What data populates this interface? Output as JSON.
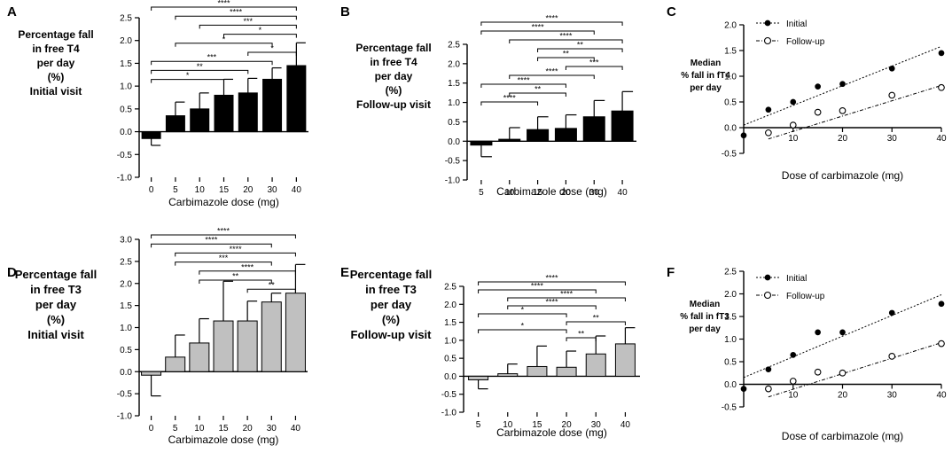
{
  "chart_data": [
    {
      "panel": "A",
      "type": "bar",
      "categories": [
        "0",
        "5",
        "10",
        "15",
        "20",
        "30",
        "40"
      ],
      "values": [
        -0.15,
        0.35,
        0.5,
        0.8,
        0.85,
        1.15,
        1.45
      ],
      "errors": [
        0.15,
        0.3,
        0.35,
        0.35,
        0.32,
        0.25,
        0.5
      ],
      "bar_color": "#000000",
      "ylabel_lines": [
        "Percentage fall",
        "in free T4",
        "per day",
        "(%)",
        "Initial visit"
      ],
      "xlabel": "Carbimazole dose (mg)",
      "ylim": [
        -1.0,
        2.5
      ],
      "yticks": [
        "-1.0",
        "-0.5",
        "0.0",
        "0.5",
        "1.0",
        "1.5",
        "2.0",
        "2.5"
      ],
      "significance": [
        {
          "from": 0,
          "to": 6,
          "label": "****"
        },
        {
          "from": 1,
          "to": 6,
          "label": "****"
        },
        {
          "from": 2,
          "to": 6,
          "label": "***"
        },
        {
          "from": 3,
          "to": 6,
          "label": "*"
        },
        {
          "from": 1,
          "to": 5,
          "label": "*"
        },
        {
          "from": 4,
          "to": 6,
          "label": "*"
        },
        {
          "from": 0,
          "to": 5,
          "label": "***"
        },
        {
          "from": 0,
          "to": 4,
          "label": "**"
        },
        {
          "from": 0,
          "to": 3,
          "label": "*"
        }
      ]
    },
    {
      "panel": "B",
      "type": "bar",
      "categories": [
        "5",
        "10",
        "15",
        "20",
        "30",
        "40"
      ],
      "values": [
        -0.1,
        0.05,
        0.3,
        0.33,
        0.63,
        0.78
      ],
      "errors": [
        0.3,
        0.3,
        0.33,
        0.35,
        0.42,
        0.5
      ],
      "bar_color": "#000000",
      "ylabel_lines": [
        "Percentage fall",
        "in free T4",
        "per day",
        "(%)",
        "Follow-up visit"
      ],
      "xlabel": "Carbimazole dose (mg)",
      "ylim": [
        -1.0,
        2.5
      ],
      "yticks": [
        "-1.0",
        "-0.5",
        "0.0",
        "0.5",
        "1.0",
        "1.5",
        "2.0",
        "2.5"
      ],
      "significance": [
        {
          "from": 0,
          "to": 5,
          "label": "****"
        },
        {
          "from": 0,
          "to": 4,
          "label": "****"
        },
        {
          "from": 1,
          "to": 5,
          "label": "****"
        },
        {
          "from": 2,
          "to": 5,
          "label": "**"
        },
        {
          "from": 2,
          "to": 4,
          "label": "**"
        },
        {
          "from": 3,
          "to": 5,
          "label": "***"
        },
        {
          "from": 1,
          "to": 4,
          "label": "****"
        },
        {
          "from": 0,
          "to": 3,
          "label": "****"
        },
        {
          "from": 1,
          "to": 3,
          "label": "**"
        },
        {
          "from": 0,
          "to": 2,
          "label": "****"
        }
      ]
    },
    {
      "panel": "C",
      "type": "scatter",
      "series": [
        {
          "name": "Initial",
          "x": [
            0,
            5,
            10,
            15,
            20,
            30,
            40
          ],
          "y": [
            -0.15,
            0.35,
            0.5,
            0.8,
            0.85,
            1.15,
            1.45
          ],
          "fill": "#000000"
        },
        {
          "name": "Follow-up",
          "x": [
            5,
            10,
            15,
            20,
            30,
            40
          ],
          "y": [
            -0.1,
            0.05,
            0.3,
            0.33,
            0.63,
            0.78
          ],
          "fill": "#ffffff"
        }
      ],
      "trendlines": [
        {
          "series": "Initial",
          "x": [
            0,
            40
          ],
          "y": [
            0.05,
            1.58
          ]
        },
        {
          "series": "Follow-up",
          "x": [
            5,
            40
          ],
          "y": [
            -0.22,
            0.82
          ]
        }
      ],
      "ylabel_lines": [
        "Median",
        "% fall in fT4",
        "per day"
      ],
      "xlabel": "Dose of carbimazole (mg)",
      "xlim": [
        0,
        40
      ],
      "ylim": [
        -0.5,
        2.0
      ],
      "xticks": [
        "10",
        "20",
        "30",
        "40"
      ],
      "yticks": [
        "-0.5",
        "0.0",
        "0.5",
        "1.0",
        "1.5",
        "2.0"
      ]
    },
    {
      "panel": "D",
      "type": "bar",
      "categories": [
        "0",
        "5",
        "10",
        "15",
        "20",
        "30",
        "40"
      ],
      "values": [
        -0.08,
        0.33,
        0.65,
        1.15,
        1.15,
        1.58,
        1.78
      ],
      "errors": [
        0.47,
        0.5,
        0.55,
        0.9,
        0.45,
        0.2,
        0.65
      ],
      "bar_color": "#c0c0c0",
      "ylabel_lines": [
        "Percentage fall",
        "in free T3",
        "per day",
        "(%)",
        "Initial visit"
      ],
      "xlabel": "Carbimazole dose (mg)",
      "ylim": [
        -1.0,
        3.0
      ],
      "yticks": [
        "-1.0",
        "-0.5",
        "0.0",
        "0.5",
        "1.0",
        "1.5",
        "2.0",
        "2.5",
        "3.0"
      ],
      "significance": [
        {
          "from": 0,
          "to": 6,
          "label": "****"
        },
        {
          "from": 0,
          "to": 5,
          "label": "****"
        },
        {
          "from": 1,
          "to": 6,
          "label": "****"
        },
        {
          "from": 1,
          "to": 5,
          "label": "***"
        },
        {
          "from": 2,
          "to": 6,
          "label": "****"
        },
        {
          "from": 2,
          "to": 5,
          "label": "**"
        },
        {
          "from": 4,
          "to": 6,
          "label": "**"
        }
      ]
    },
    {
      "panel": "E",
      "type": "bar",
      "categories": [
        "5",
        "10",
        "15",
        "20",
        "30",
        "40"
      ],
      "values": [
        -0.1,
        0.07,
        0.27,
        0.25,
        0.62,
        0.9
      ],
      "errors": [
        0.25,
        0.27,
        0.57,
        0.45,
        0.5,
        0.45
      ],
      "bar_color": "#c0c0c0",
      "ylabel_lines": [
        "Percentage fall",
        "in free T3",
        "per day",
        "(%)",
        "Follow-up visit"
      ],
      "xlabel": "Carbimazole dose (mg)",
      "ylim": [
        -1.0,
        2.5
      ],
      "yticks": [
        "-1.0",
        "-0.5",
        "0.0",
        "0.5",
        "1.0",
        "1.5",
        "2.0",
        "2.5"
      ],
      "significance": [
        {
          "from": 0,
          "to": 5,
          "label": "****"
        },
        {
          "from": 0,
          "to": 4,
          "label": "****"
        },
        {
          "from": 1,
          "to": 5,
          "label": "****"
        },
        {
          "from": 1,
          "to": 4,
          "label": "****"
        },
        {
          "from": 0,
          "to": 3,
          "label": "*"
        },
        {
          "from": 3,
          "to": 5,
          "label": "**"
        },
        {
          "from": 0,
          "to": 3,
          "label": "*"
        },
        {
          "from": 3,
          "to": 4,
          "label": "**"
        }
      ]
    },
    {
      "panel": "F",
      "type": "scatter",
      "series": [
        {
          "name": "Initial",
          "x": [
            0,
            5,
            10,
            15,
            20,
            30,
            40
          ],
          "y": [
            -0.1,
            0.33,
            0.65,
            1.15,
            1.15,
            1.58,
            1.78
          ],
          "fill": "#000000"
        },
        {
          "name": "Follow-up",
          "x": [
            5,
            10,
            15,
            20,
            30,
            40
          ],
          "y": [
            -0.1,
            0.07,
            0.27,
            0.25,
            0.62,
            0.9
          ],
          "fill": "#ffffff"
        }
      ],
      "trendlines": [
        {
          "series": "Initial",
          "x": [
            0,
            40
          ],
          "y": [
            0.15,
            1.98
          ]
        },
        {
          "series": "Follow-up",
          "x": [
            5,
            40
          ],
          "y": [
            -0.28,
            0.92
          ]
        }
      ],
      "ylabel_lines": [
        "Median",
        "% fall in fT3",
        "per day"
      ],
      "xlabel": "Dose of carbimazole (mg)",
      "xlim": [
        0,
        40
      ],
      "ylim": [
        -0.5,
        2.5
      ],
      "xticks": [
        "10",
        "20",
        "30",
        "40"
      ],
      "yticks": [
        "-0.5",
        "0.0",
        "0.5",
        "1.0",
        "1.5",
        "2.0",
        "2.5"
      ]
    }
  ]
}
